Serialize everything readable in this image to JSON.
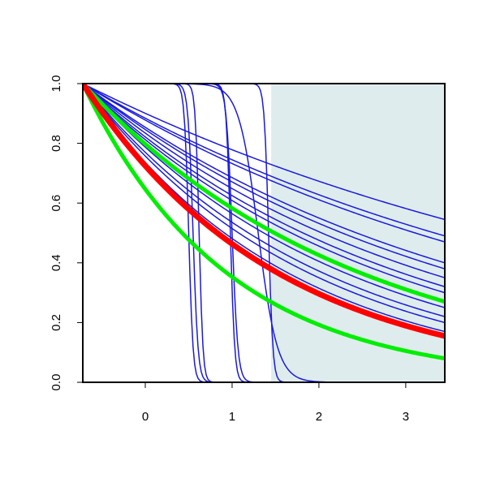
{
  "chart_data": {
    "type": "line",
    "title": "",
    "xlabel": "",
    "ylabel": "",
    "xlim": [
      -0.72,
      3.45
    ],
    "ylim": [
      0,
      1
    ],
    "x_ticks": [
      0,
      1,
      2,
      3
    ],
    "y_ticks": [
      0,
      0.2,
      0.4,
      0.6,
      0.8,
      1
    ],
    "x_tick_labels": [
      "0",
      "1",
      "2",
      "3"
    ],
    "y_tick_labels": [
      "0.0",
      "0.2",
      "0.4",
      "0.6",
      "0.8",
      "1.0"
    ],
    "grid": false,
    "legend": "none",
    "shaded_region": {
      "x_start": 1.45,
      "x_end": 3.45,
      "color": "#dfeced"
    },
    "colors": {
      "blue": "#1a1adc",
      "red": "#ff0000",
      "green": "#00ee00",
      "axis": "#000000"
    },
    "series": [
      {
        "color": "#1a1adc",
        "width": 1.5,
        "x": [
          -0.72,
          3.45
        ],
        "y": [
          1.0,
          0.545
        ]
      },
      {
        "color": "#1a1adc",
        "width": 1.5,
        "x": [
          -0.72,
          3.45
        ],
        "y": [
          1.0,
          0.49
        ]
      },
      {
        "color": "#1a1adc",
        "width": 1.5,
        "x": [
          -0.72,
          3.45
        ],
        "y": [
          1.0,
          0.47
        ]
      },
      {
        "color": "#1a1adc",
        "width": 1.5,
        "x": [
          -0.72,
          3.45
        ],
        "y": [
          1.0,
          0.4
        ]
      },
      {
        "color": "#1a1adc",
        "width": 1.5,
        "x": [
          -0.72,
          3.45
        ],
        "y": [
          1.0,
          0.38
        ]
      },
      {
        "color": "#1a1adc",
        "width": 1.5,
        "x": [
          -0.72,
          3.45
        ],
        "y": [
          1.0,
          0.35
        ]
      },
      {
        "color": "#1a1adc",
        "width": 1.5,
        "x": [
          -0.72,
          3.45
        ],
        "y": [
          1.0,
          0.32
        ]
      },
      {
        "color": "#1a1adc",
        "width": 1.5,
        "x": [
          -0.72,
          3.45
        ],
        "y": [
          1.0,
          0.3
        ]
      },
      {
        "color": "#1a1adc",
        "width": 1.5,
        "x": [
          -0.72,
          3.45
        ],
        "y": [
          1.0,
          0.27
        ]
      },
      {
        "color": "#1a1adc",
        "width": 1.5,
        "x": [
          -0.72,
          3.45
        ],
        "y": [
          1.0,
          0.25
        ]
      },
      {
        "color": "#1a1adc",
        "width": 1.5,
        "x": [
          -0.72,
          3.45
        ],
        "y": [
          1.0,
          0.22
        ]
      },
      {
        "color": "#1a1adc",
        "width": 1.5,
        "x": [
          -0.72,
          3.45
        ],
        "y": [
          1.0,
          0.2
        ]
      },
      {
        "color": "#1a1adc",
        "width": 1.5,
        "x": [
          -0.72,
          3.45
        ],
        "y": [
          1.0,
          0.17
        ]
      },
      {
        "color": "#1a1adc",
        "width": 1.5,
        "x": [
          -0.72,
          3.45
        ],
        "y": [
          1.0,
          0.0
        ],
        "midpoint": 0.5,
        "steepness": 40
      },
      {
        "color": "#1a1adc",
        "width": 1.5,
        "x": [
          -0.72,
          3.45
        ],
        "y": [
          1.0,
          0.0
        ],
        "midpoint": 0.55,
        "steepness": 35
      },
      {
        "color": "#1a1adc",
        "width": 1.5,
        "x": [
          -0.72,
          3.45
        ],
        "y": [
          1.0,
          0.0
        ],
        "midpoint": 0.62,
        "steepness": 45
      },
      {
        "color": "#1a1adc",
        "width": 1.5,
        "x": [
          -0.72,
          3.45
        ],
        "y": [
          1.0,
          0.0
        ],
        "midpoint": 0.98,
        "steepness": 40
      },
      {
        "color": "#1a1adc",
        "width": 1.5,
        "x": [
          -0.72,
          3.45
        ],
        "y": [
          1.0,
          0.0
        ],
        "midpoint": 1.0,
        "steepness": 30
      },
      {
        "color": "#1a1adc",
        "width": 1.5,
        "x": [
          -0.72,
          3.45
        ],
        "y": [
          1.0,
          0.0
        ],
        "midpoint": 1.3,
        "steepness": 9
      },
      {
        "color": "#1a1adc",
        "width": 1.5,
        "x": [
          -0.72,
          3.45
        ],
        "y": [
          1.0,
          0.0
        ],
        "midpoint": 1.42,
        "steepness": 40
      },
      {
        "color": "#00ee00",
        "width": 5,
        "x": [
          -0.72,
          3.45
        ],
        "y": [
          1.0,
          0.27
        ]
      },
      {
        "color": "#00ee00",
        "width": 5,
        "x": [
          -0.72,
          3.45
        ],
        "y": [
          1.0,
          0.08
        ]
      },
      {
        "color": "#ff0000",
        "width": 7,
        "x": [
          -0.72,
          3.45
        ],
        "y": [
          1.0,
          0.155
        ]
      }
    ]
  }
}
